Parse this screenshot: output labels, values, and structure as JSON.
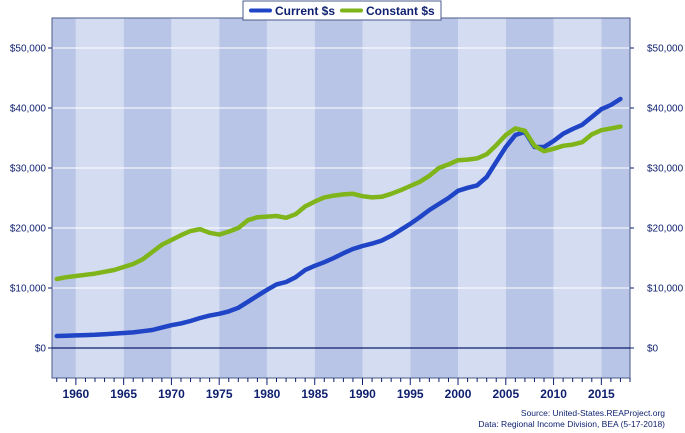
{
  "chart_data": {
    "type": "line",
    "title": "",
    "xlabel": "",
    "ylabel": "",
    "xlim": [
      1957.5,
      2018
    ],
    "ylim": [
      -5000,
      55000
    ],
    "x_ticks": [
      1960,
      1965,
      1970,
      1975,
      1980,
      1985,
      1990,
      1995,
      2000,
      2005,
      2010,
      2015
    ],
    "y_ticks": [
      0,
      10000,
      20000,
      30000,
      40000,
      50000
    ],
    "y_tick_labels": [
      "$0",
      "$10,000",
      "$20,000",
      "$30,000",
      "$40,000",
      "$50,000"
    ],
    "grid": true,
    "legend_position": "top-center",
    "series": [
      {
        "name": "Current $s",
        "color": "#1f45c6",
        "x": [
          1958,
          1959,
          1960,
          1961,
          1962,
          1963,
          1964,
          1965,
          1966,
          1967,
          1968,
          1969,
          1970,
          1971,
          1972,
          1973,
          1974,
          1975,
          1976,
          1977,
          1978,
          1979,
          1980,
          1981,
          1982,
          1983,
          1984,
          1985,
          1986,
          1987,
          1988,
          1989,
          1990,
          1991,
          1992,
          1993,
          1994,
          1995,
          1996,
          1997,
          1998,
          1999,
          2000,
          2001,
          2002,
          2003,
          2004,
          2005,
          2006,
          2007,
          2008,
          2009,
          2010,
          2011,
          2012,
          2013,
          2014,
          2015,
          2016,
          2017
        ],
        "values": [
          2000,
          2050,
          2100,
          2150,
          2200,
          2300,
          2400,
          2500,
          2600,
          2800,
          3000,
          3400,
          3800,
          4100,
          4500,
          5000,
          5400,
          5700,
          6100,
          6700,
          7700,
          8700,
          9700,
          10600,
          11000,
          11800,
          13000,
          13700,
          14300,
          15000,
          15800,
          16500,
          17000,
          17400,
          17900,
          18700,
          19700,
          20700,
          21800,
          23000,
          24000,
          25000,
          26200,
          26700,
          27100,
          28500,
          31000,
          33500,
          35500,
          36000,
          33500,
          33500,
          34500,
          35700,
          36500,
          37200,
          38500,
          39800,
          40500,
          41500
        ]
      },
      {
        "name": "Constant $s",
        "color": "#7fb51a",
        "x": [
          1958,
          1959,
          1960,
          1961,
          1962,
          1963,
          1964,
          1965,
          1966,
          1967,
          1968,
          1969,
          1970,
          1971,
          1972,
          1973,
          1974,
          1975,
          1976,
          1977,
          1978,
          1979,
          1980,
          1981,
          1982,
          1983,
          1984,
          1985,
          1986,
          1987,
          1988,
          1989,
          1990,
          1991,
          1992,
          1993,
          1994,
          1995,
          1996,
          1997,
          1998,
          1999,
          2000,
          2001,
          2002,
          2003,
          2004,
          2005,
          2006,
          2007,
          2008,
          2009,
          2010,
          2011,
          2012,
          2013,
          2014,
          2015,
          2016,
          2017
        ],
        "values": [
          11500,
          11800,
          12000,
          12200,
          12400,
          12700,
          13000,
          13500,
          14000,
          14800,
          16000,
          17200,
          18000,
          18800,
          19500,
          19800,
          19200,
          18900,
          19400,
          20000,
          21300,
          21800,
          21900,
          22000,
          21700,
          22300,
          23600,
          24400,
          25100,
          25400,
          25600,
          25700,
          25300,
          25100,
          25200,
          25700,
          26300,
          27000,
          27700,
          28700,
          30000,
          30600,
          31300,
          31400,
          31600,
          32300,
          33800,
          35500,
          36600,
          36200,
          33700,
          32800,
          33200,
          33700,
          33900,
          34300,
          35600,
          36300,
          36600,
          36900
        ]
      }
    ]
  },
  "source_line1": "Source: United-States.REAProject.org",
  "source_line2": "Data: Regional Income Division, BEA  (5-17-2018)"
}
